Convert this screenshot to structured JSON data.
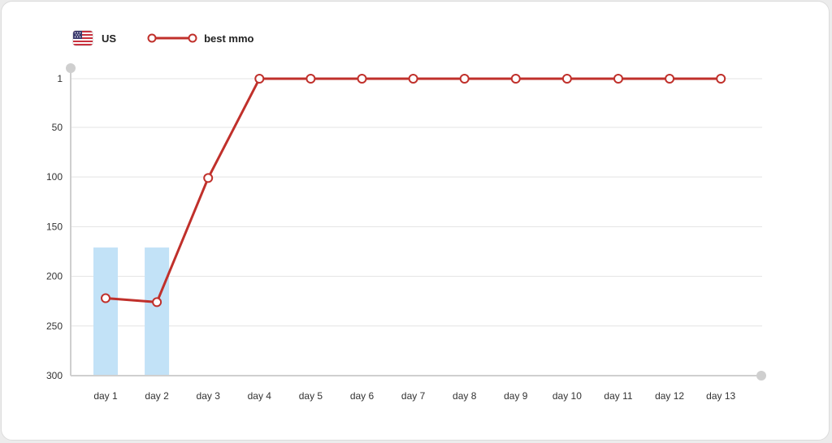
{
  "legend": {
    "flag_label": "US",
    "series_label": "best mmo"
  },
  "colors": {
    "line": "#c0302b",
    "bar": "#c2e2f7",
    "grid": "#e3e3e3",
    "axis": "#cfcfcf"
  },
  "chart_data": {
    "type": "line",
    "categories": [
      "day 1",
      "day 2",
      "day 3",
      "day 4",
      "day 5",
      "day 6",
      "day 7",
      "day 8",
      "day 9",
      "day 10",
      "day 11",
      "day 12",
      "day 13"
    ],
    "series": [
      {
        "name": "best mmo",
        "type": "line",
        "values": [
          222,
          226,
          101,
          1,
          1,
          1,
          1,
          1,
          1,
          1,
          1,
          1,
          1
        ]
      },
      {
        "type": "bar",
        "values": [
          171,
          171,
          null,
          null,
          null,
          null,
          null,
          null,
          null,
          null,
          null,
          null,
          null
        ]
      }
    ],
    "y_ticks": [
      1,
      50,
      100,
      150,
      200,
      250,
      300
    ],
    "ylim": [
      1,
      300
    ],
    "y_inverted": true,
    "grid": true,
    "legend_position": "top-left"
  }
}
